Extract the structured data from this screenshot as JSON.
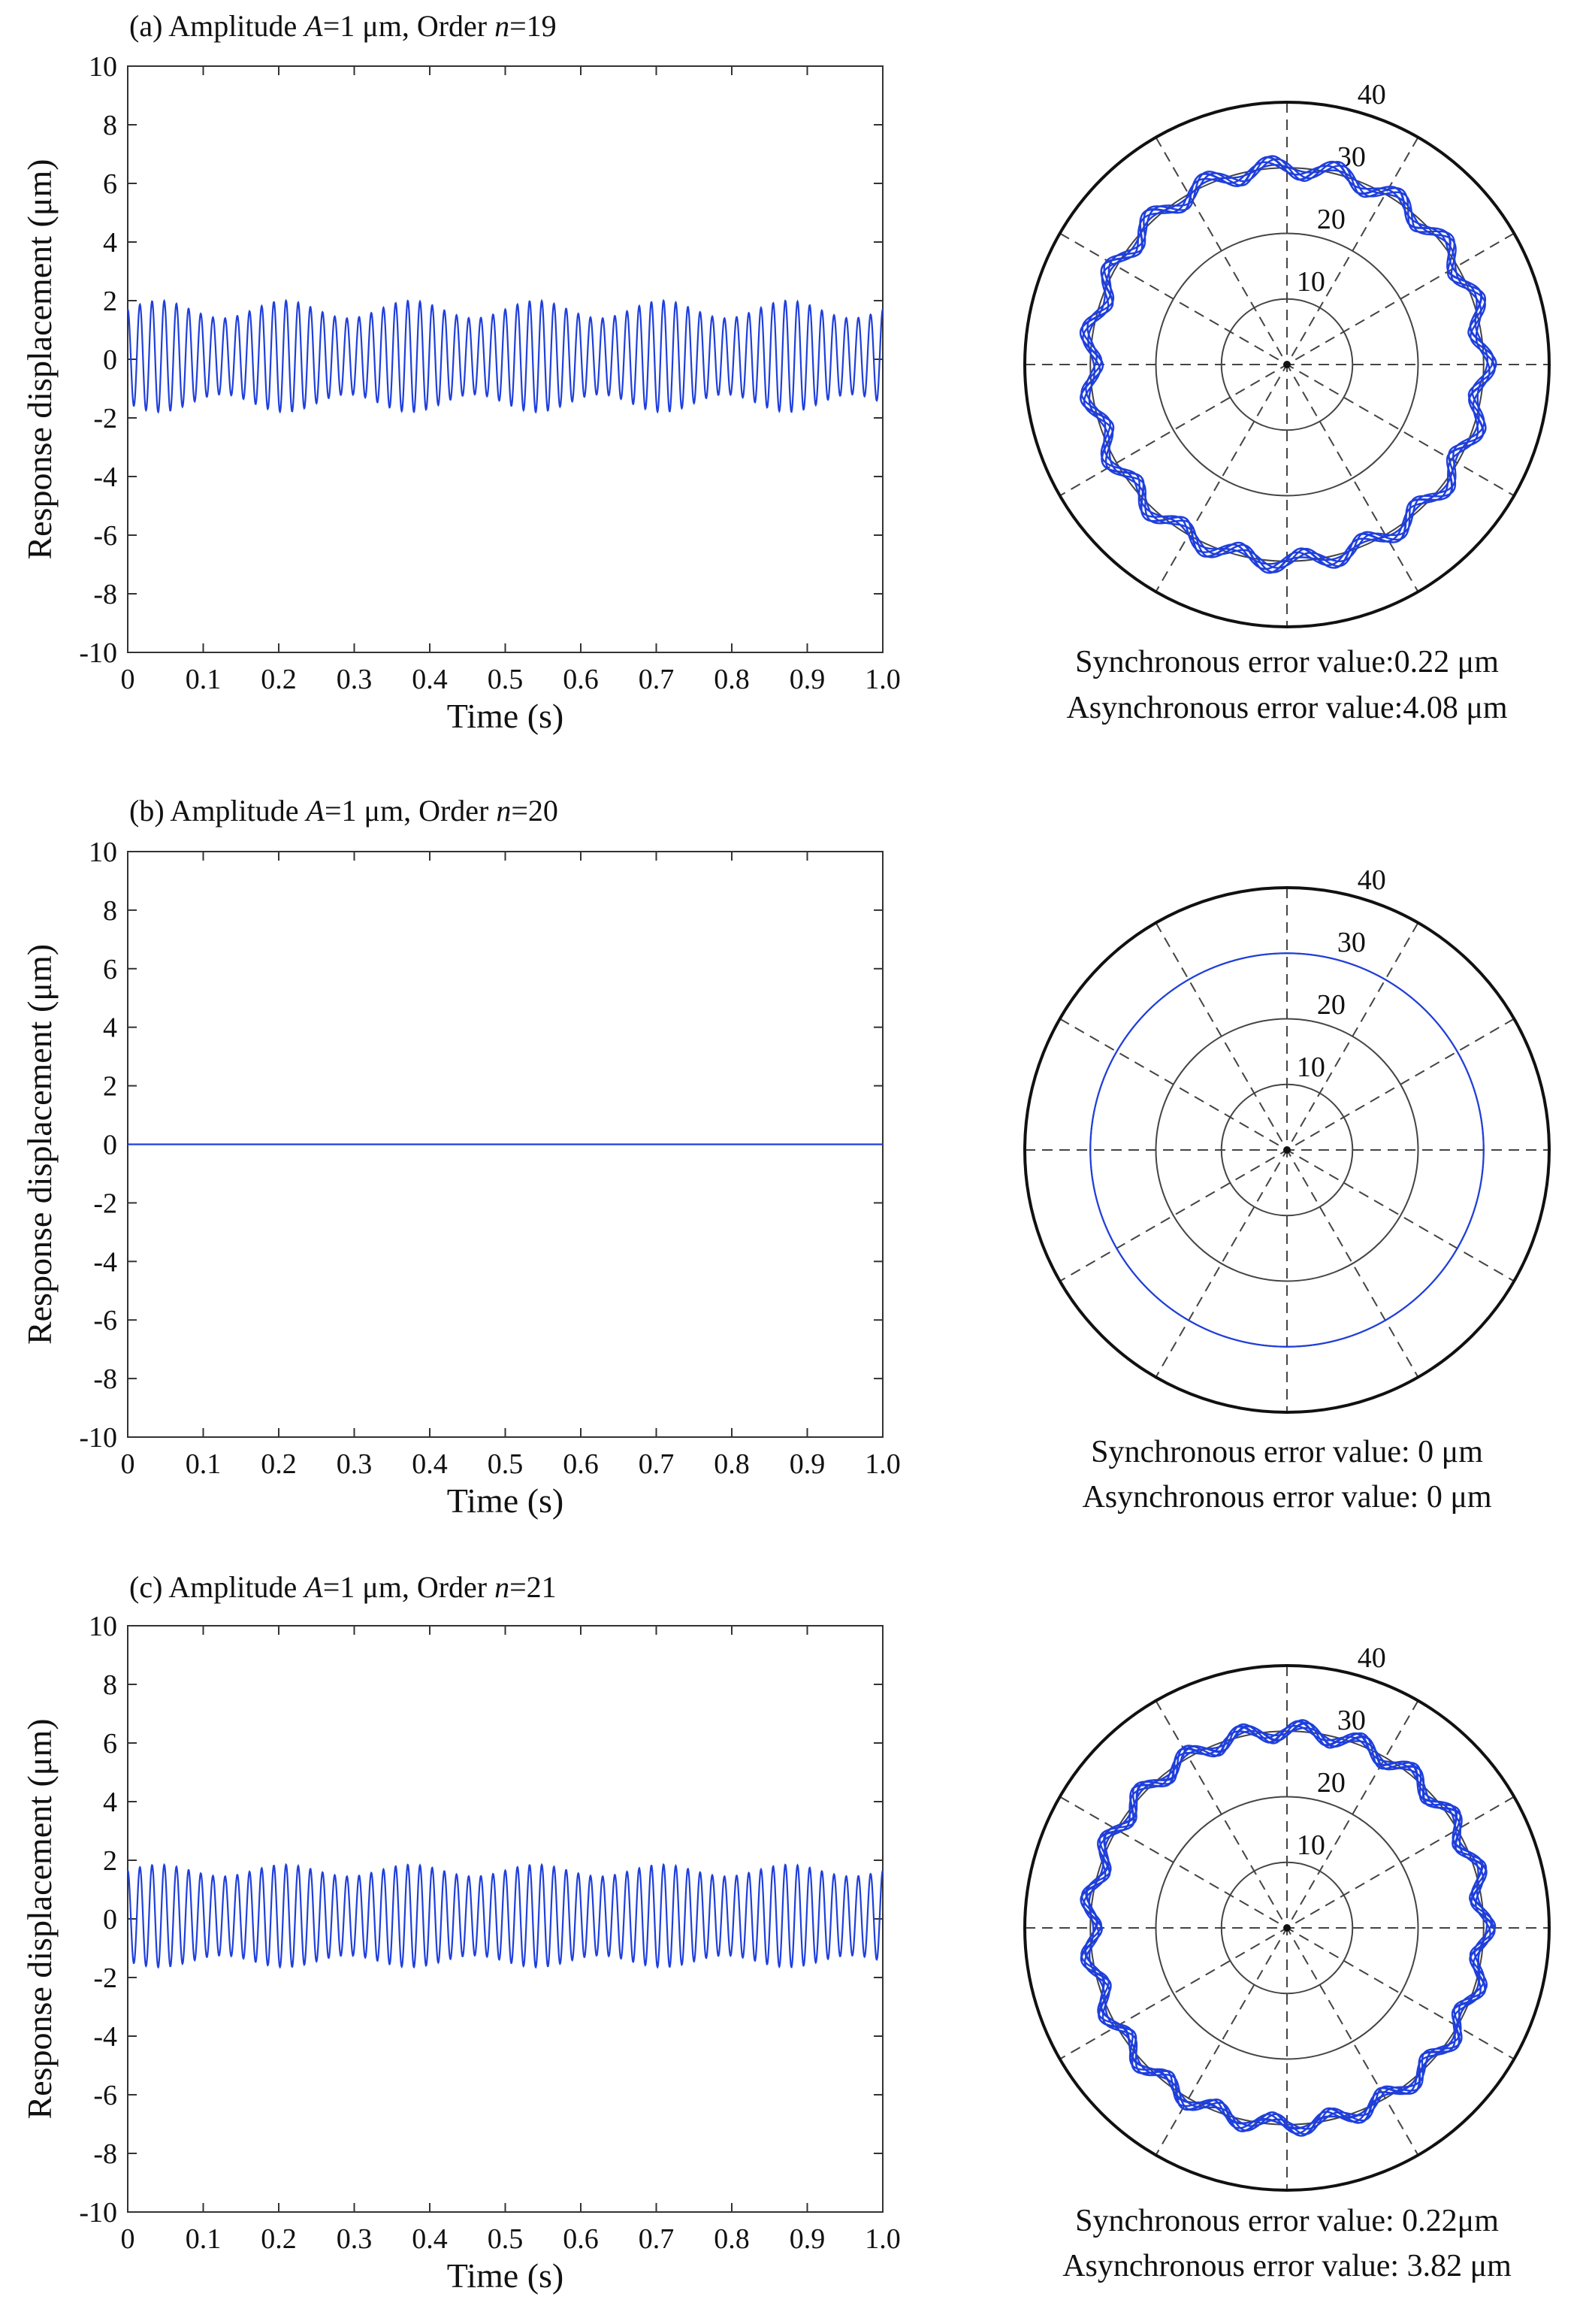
{
  "colors": {
    "signal": "#1f3fdc",
    "axis": "#333333",
    "grid": "#444444",
    "text": "#111111"
  },
  "shared_axes": {
    "ylabel": "Response displacement (μm)",
    "xlabel": "Time (s)"
  },
  "panels": [
    {
      "title": {
        "prefix": "(a) Amplitude ",
        "var_a": "A",
        "mid": "=1 μm, Order ",
        "var_n": "n",
        "suffix": "=19"
      },
      "sync_text": "Synchronous error value:0.22 μm",
      "async_text": "Asynchronous error value:4.08 μm"
    },
    {
      "title": {
        "prefix": "(b) Amplitude ",
        "var_a": "A",
        "mid": "=1 μm, Order ",
        "var_n": "n",
        "suffix": "=20"
      },
      "sync_text": "Synchronous error value: 0 μm",
      "async_text": "Asynchronous error value: 0 μm"
    },
    {
      "title": {
        "prefix": "(c) Amplitude ",
        "var_a": "A",
        "mid": "=1 μm, Order ",
        "var_n": "n",
        "suffix": "=21"
      },
      "sync_text": "Synchronous error value: 0.22μm",
      "async_text": "Asynchronous error value: 3.82 μm"
    }
  ],
  "chart_data": [
    {
      "type": "line",
      "title": "(a) Amplitude A=1 μm, Order n=19",
      "xlabel": "Time (s)",
      "ylabel": "Response displacement (μm)",
      "xlim": [
        0,
        1.0
      ],
      "ylim": [
        -10,
        10
      ],
      "xticks": [
        "0",
        "0.1",
        "0.2",
        "0.3",
        "0.4",
        "0.5",
        "0.6",
        "0.7",
        "0.8",
        "0.9",
        "1.0"
      ],
      "yticks": [
        "10",
        "8",
        "6",
        "4",
        "2",
        "0",
        "-2",
        "-4",
        "-6",
        "-8",
        "-10"
      ],
      "series": [
        {
          "name": "response",
          "cycles_per_second": 62,
          "amplitude_um": 1.6,
          "beat_cycles_per_second": 6,
          "beat_depth_um": 0.3,
          "offset_um": 0.1
        }
      ]
    },
    {
      "type": "scatter",
      "subtype": "polar",
      "rlim": [
        0,
        40
      ],
      "radial_ticks": [
        "10",
        "20",
        "30",
        "40"
      ],
      "series": [
        {
          "name": "orbit",
          "mean_radius": 30,
          "ripple": 1.6,
          "lobes": 19,
          "turns": 6
        }
      ]
    },
    {
      "type": "line",
      "title": "(b) Amplitude A=1 μm, Order n=20",
      "xlabel": "Time (s)",
      "ylabel": "Response displacement (μm)",
      "xlim": [
        0,
        1.0
      ],
      "ylim": [
        -10,
        10
      ],
      "xticks": [
        "0",
        "0.1",
        "0.2",
        "0.3",
        "0.4",
        "0.5",
        "0.6",
        "0.7",
        "0.8",
        "0.9",
        "1.0"
      ],
      "yticks": [
        "10",
        "8",
        "6",
        "4",
        "2",
        "0",
        "-2",
        "-4",
        "-6",
        "-8",
        "-10"
      ],
      "series": [
        {
          "name": "response",
          "cycles_per_second": 0,
          "amplitude_um": 0,
          "beat_cycles_per_second": 0,
          "beat_depth_um": 0,
          "offset_um": 0
        }
      ]
    },
    {
      "type": "scatter",
      "subtype": "polar",
      "rlim": [
        0,
        40
      ],
      "radial_ticks": [
        "10",
        "20",
        "30",
        "40"
      ],
      "series": [
        {
          "name": "orbit",
          "mean_radius": 30,
          "ripple": 0,
          "lobes": 20,
          "turns": 1
        }
      ]
    },
    {
      "type": "line",
      "title": "(c) Amplitude A=1 μm, Order n=21",
      "xlabel": "Time (s)",
      "ylabel": "Response displacement (μm)",
      "xlim": [
        0,
        1.0
      ],
      "ylim": [
        -10,
        10
      ],
      "xticks": [
        "0",
        "0.1",
        "0.2",
        "0.3",
        "0.4",
        "0.5",
        "0.6",
        "0.7",
        "0.8",
        "0.9",
        "1.0"
      ],
      "yticks": [
        "10",
        "8",
        "6",
        "4",
        "2",
        "0",
        "-2",
        "-4",
        "-6",
        "-8",
        "-10"
      ],
      "series": [
        {
          "name": "response",
          "cycles_per_second": 62,
          "amplitude_um": 1.55,
          "beat_cycles_per_second": 6,
          "beat_depth_um": 0.2,
          "offset_um": 0.1
        }
      ]
    },
    {
      "type": "scatter",
      "subtype": "polar",
      "rlim": [
        0,
        40
      ],
      "radial_ticks": [
        "10",
        "20",
        "30",
        "40"
      ],
      "series": [
        {
          "name": "orbit",
          "mean_radius": 30,
          "ripple": 1.5,
          "lobes": 21,
          "turns": 7
        }
      ]
    }
  ]
}
